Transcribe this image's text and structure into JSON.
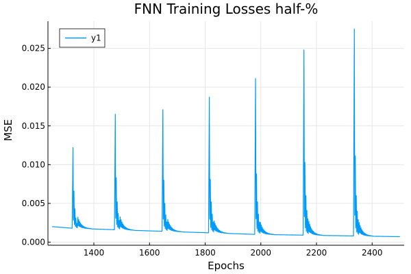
{
  "chart_data": {
    "type": "line",
    "title": "FNN Training Losses half-%",
    "xlabel": "Epochs",
    "ylabel": "MSE",
    "xlim": [
      1235,
      2515
    ],
    "ylim": [
      -0.0004,
      0.0285
    ],
    "xticks": [
      1400,
      1600,
      1800,
      2000,
      2200,
      2400
    ],
    "xtick_labels": [
      "1400",
      "1600",
      "1800",
      "2000",
      "2200",
      "2400"
    ],
    "yticks": [
      0.0,
      0.005,
      0.01,
      0.015,
      0.02,
      0.025
    ],
    "ytick_labels": [
      "0.000",
      "0.005",
      "0.010",
      "0.015",
      "0.020",
      "0.025"
    ],
    "grid": true,
    "legend": {
      "position": "top-left"
    },
    "series": [
      {
        "name": "y1",
        "color": "#009AFA",
        "x_start": 1250,
        "x_end": 2500,
        "baseline": [
          [
            1250,
            0.002
          ],
          [
            1320,
            0.0018
          ],
          [
            1475,
            0.0016
          ],
          [
            1645,
            0.0014
          ],
          [
            1815,
            0.0012
          ],
          [
            1980,
            0.001
          ],
          [
            2155,
            0.0009
          ],
          [
            2335,
            0.0008
          ],
          [
            2500,
            0.0007
          ]
        ],
        "spikes": [
          {
            "x": 1325,
            "peaks": [
              0.0122,
              0.0066,
              0.0043,
              0.0031,
              0.0024
            ]
          },
          {
            "x": 1477,
            "peaks": [
              0.0165,
              0.0083,
              0.0052,
              0.0037,
              0.0028
            ]
          },
          {
            "x": 1648,
            "peaks": [
              0.0171,
              0.008,
              0.005,
              0.0035,
              0.0026
            ]
          },
          {
            "x": 1815,
            "peaks": [
              0.0187,
              0.0081,
              0.0052,
              0.0036,
              0.0026
            ]
          },
          {
            "x": 1981,
            "peaks": [
              0.0211,
              0.0088,
              0.0052,
              0.0036,
              0.0026
            ]
          },
          {
            "x": 2155,
            "peaks": [
              0.0248,
              0.0103,
              0.006,
              0.0041,
              0.003
            ]
          },
          {
            "x": 2336,
            "peaks": [
              0.0275,
              0.0111,
              0.006,
              0.004,
              0.0029
            ]
          }
        ]
      }
    ]
  }
}
